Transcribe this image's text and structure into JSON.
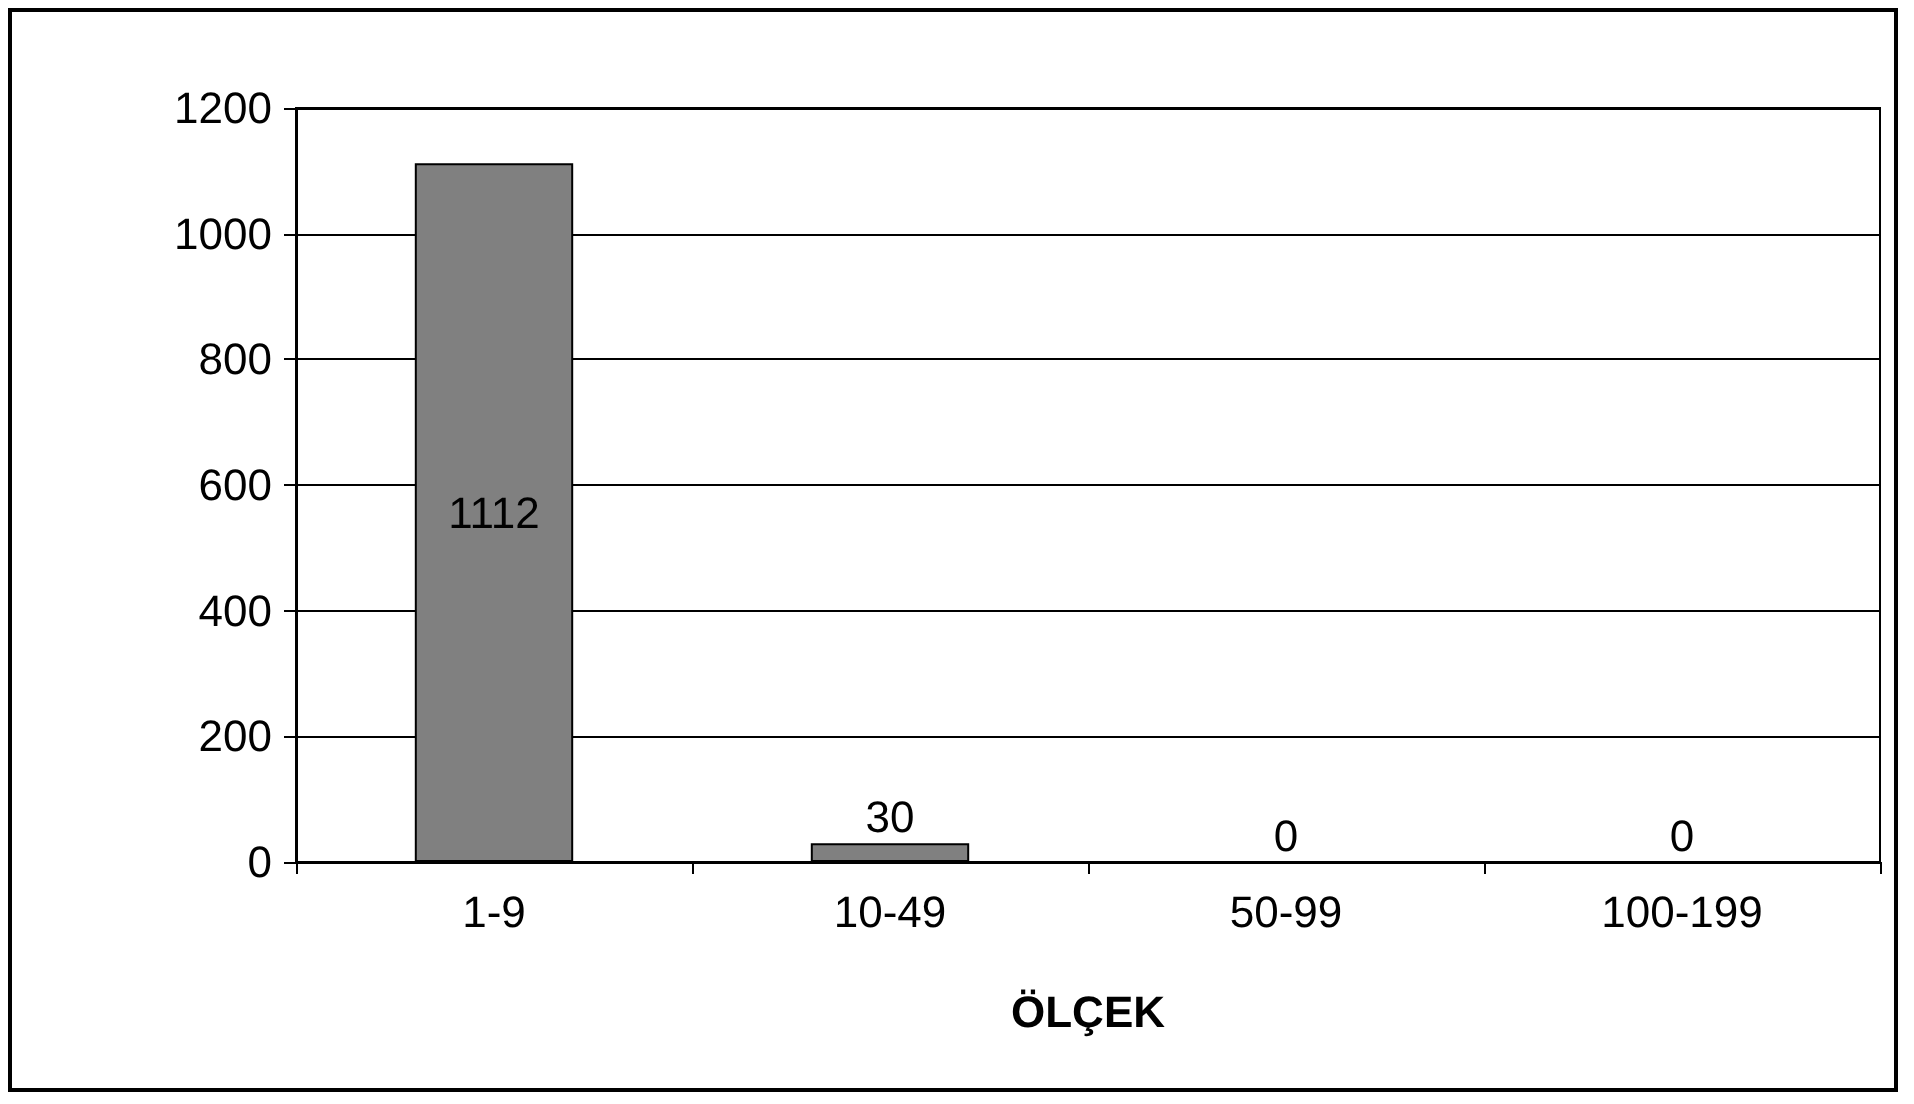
{
  "chart_data": {
    "type": "bar",
    "xlabel": "ÖLÇEK",
    "categories": [
      "1-9",
      "10-49",
      "50-99",
      "100-199"
    ],
    "values": [
      1112,
      30,
      0,
      0
    ],
    "color": "#808080",
    "ylim": [
      0,
      1200
    ],
    "yticks": [
      0,
      200,
      400,
      600,
      800,
      1000,
      1200
    ],
    "grid": "y",
    "data_labels": true
  }
}
